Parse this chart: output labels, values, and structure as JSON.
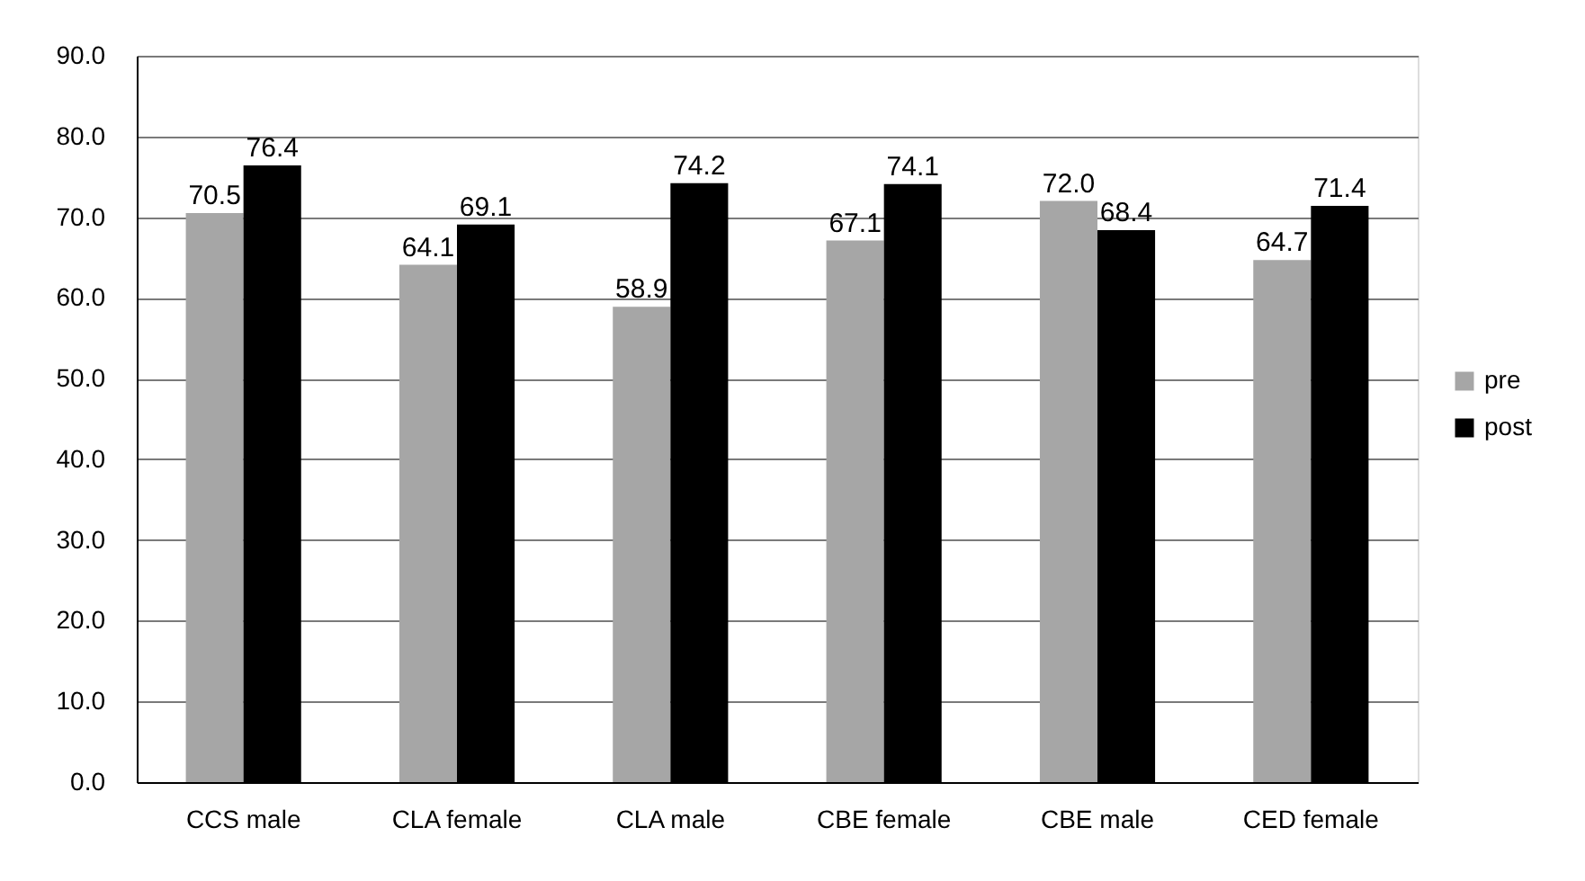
{
  "chart_data": {
    "type": "bar",
    "categories": [
      "CCS male",
      "CLA female",
      "CLA male",
      "CBE female",
      "CBE male",
      "CED female"
    ],
    "series": [
      {
        "name": "pre",
        "color": "#a6a6a6",
        "values": [
          70.5,
          64.1,
          58.9,
          67.1,
          72.0,
          64.7
        ],
        "value_labels": [
          "70.5",
          "64.1",
          "58.9",
          "67.1",
          "72.0",
          "64.7"
        ]
      },
      {
        "name": "post",
        "color": "#000000",
        "values": [
          76.4,
          69.1,
          74.2,
          74.1,
          68.4,
          71.4
        ],
        "value_labels": [
          "76.4",
          "69.1",
          "74.2",
          "74.1",
          "68.4",
          "71.4"
        ]
      }
    ],
    "ylim": [
      0,
      90
    ],
    "yticks": [
      {
        "value": 0,
        "label": "0.0"
      },
      {
        "value": 10,
        "label": "10.0"
      },
      {
        "value": 20,
        "label": "20.0"
      },
      {
        "value": 30,
        "label": "30.0"
      },
      {
        "value": 40,
        "label": "40.0"
      },
      {
        "value": 50,
        "label": "50.0"
      },
      {
        "value": 60,
        "label": "60.0"
      },
      {
        "value": 70,
        "label": "70.0"
      },
      {
        "value": 80,
        "label": "80.0"
      },
      {
        "value": 90,
        "label": "90.0"
      }
    ],
    "grid": "y",
    "legend": "right"
  }
}
